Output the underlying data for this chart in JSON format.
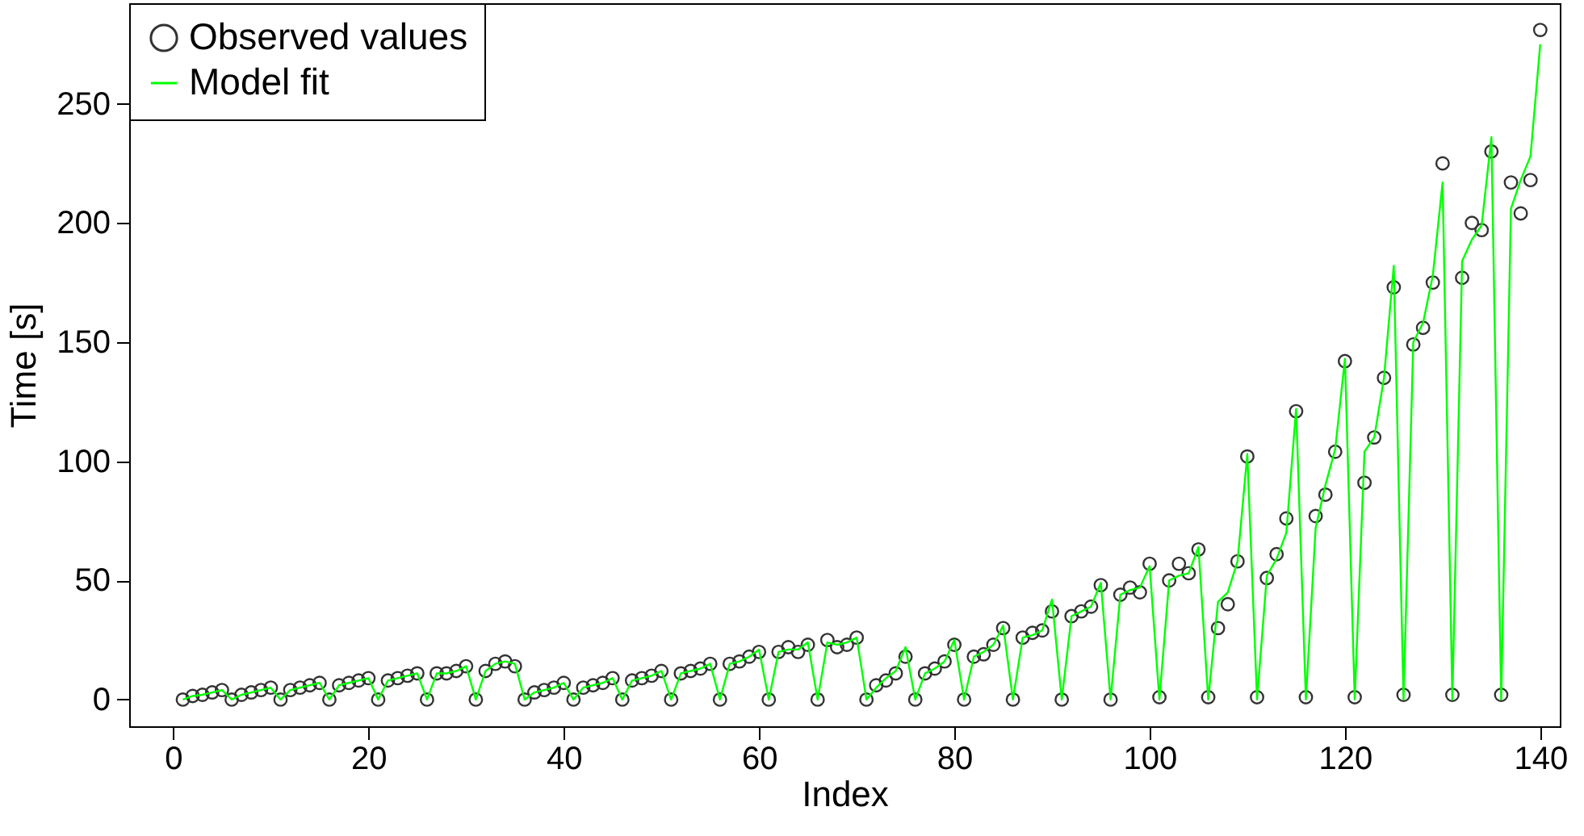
{
  "chart_data": {
    "type": "scatter",
    "xlabel": "Index",
    "ylabel": "Time [s]",
    "xlim": [
      -4.5,
      142
    ],
    "ylim": [
      -11.2,
      292.2
    ],
    "xticks": [
      0,
      20,
      40,
      60,
      80,
      100,
      120,
      140
    ],
    "yticks": [
      0,
      50,
      100,
      150,
      200,
      250
    ],
    "grid": false,
    "legend": "top left",
    "x": [
      1,
      2,
      3,
      4,
      5,
      6,
      7,
      8,
      9,
      10,
      11,
      12,
      13,
      14,
      15,
      16,
      17,
      18,
      19,
      20,
      21,
      22,
      23,
      24,
      25,
      26,
      27,
      28,
      29,
      30,
      31,
      32,
      33,
      34,
      35,
      36,
      37,
      38,
      39,
      40,
      41,
      42,
      43,
      44,
      45,
      46,
      47,
      48,
      49,
      50,
      51,
      52,
      53,
      54,
      55,
      56,
      57,
      58,
      59,
      60,
      61,
      62,
      63,
      64,
      65,
      66,
      67,
      68,
      69,
      70,
      71,
      72,
      73,
      74,
      75,
      76,
      77,
      78,
      79,
      80,
      81,
      82,
      83,
      84,
      85,
      86,
      87,
      88,
      89,
      90,
      91,
      92,
      93,
      94,
      95,
      96,
      97,
      98,
      99,
      100,
      101,
      102,
      103,
      104,
      105,
      106,
      107,
      108,
      109,
      110,
      111,
      112,
      113,
      114,
      115,
      116,
      117,
      118,
      119,
      120,
      121,
      122,
      123,
      124,
      125,
      126,
      127,
      128,
      129,
      130,
      131,
      132,
      133,
      134,
      135,
      136,
      137,
      138,
      139,
      140
    ],
    "series": [
      {
        "name": "Observed values",
        "marker": "circle",
        "color": "#333333",
        "values": [
          0,
          1.5,
          2,
          3,
          4,
          0,
          2,
          3,
          4,
          5,
          0,
          4,
          5,
          6,
          7,
          0,
          6,
          7,
          8,
          9,
          0,
          8,
          9,
          10,
          11,
          0,
          11,
          11,
          12,
          14,
          0,
          12,
          15,
          16,
          14,
          0,
          3,
          4,
          5,
          7,
          0,
          5,
          6,
          7,
          9,
          0,
          8,
          9,
          10,
          12,
          0,
          11,
          12,
          13,
          15,
          0,
          15,
          16,
          18,
          20,
          0,
          20,
          22,
          20,
          23,
          0,
          25,
          22,
          23,
          26,
          0,
          6,
          8,
          11,
          18,
          0,
          11,
          13,
          16,
          23,
          0,
          18,
          19,
          23,
          30,
          0,
          26,
          28,
          29,
          37,
          0,
          35,
          37,
          39,
          48,
          0,
          44,
          47,
          45,
          57,
          1,
          50,
          57,
          53,
          63,
          1,
          30,
          40,
          58,
          102,
          1,
          51,
          61,
          76,
          121,
          1,
          77,
          86,
          104,
          142,
          1,
          91,
          110,
          135,
          173,
          2,
          149,
          156,
          175,
          225,
          2,
          177,
          200,
          197,
          230,
          2,
          217,
          204,
          218,
          281
        ]
      },
      {
        "name": "Model fit",
        "type": "line",
        "color": "#00ff00",
        "values": [
          0,
          1.5,
          2,
          3,
          4,
          0,
          2,
          3,
          4,
          5,
          0,
          4,
          5,
          6,
          7,
          0,
          6,
          7,
          8,
          9,
          0,
          8,
          9,
          10,
          11,
          0,
          11,
          11,
          12,
          14,
          0,
          12,
          15,
          16,
          15,
          0,
          3,
          4,
          5,
          7,
          0,
          5,
          6,
          7,
          9,
          0,
          8,
          9,
          10,
          12,
          0,
          11,
          12,
          13,
          15,
          0,
          15,
          16,
          18,
          21,
          0,
          20,
          21,
          21,
          24,
          0,
          24,
          23,
          24,
          26,
          0,
          5,
          9,
          12,
          22,
          0,
          11,
          13,
          16,
          25,
          0,
          18,
          20,
          23,
          31,
          0,
          26,
          27,
          29,
          42,
          0,
          35,
          37,
          39,
          49,
          0,
          44,
          46,
          47,
          56,
          0,
          50,
          52,
          53,
          64,
          0,
          41,
          45,
          58,
          103,
          0,
          52,
          59,
          70,
          122,
          0,
          72,
          90,
          105,
          143,
          0,
          104,
          110,
          135,
          182,
          0,
          150,
          158,
          178,
          217,
          0,
          184,
          193,
          199,
          236,
          0,
          206,
          218,
          228,
          275
        ]
      }
    ]
  }
}
